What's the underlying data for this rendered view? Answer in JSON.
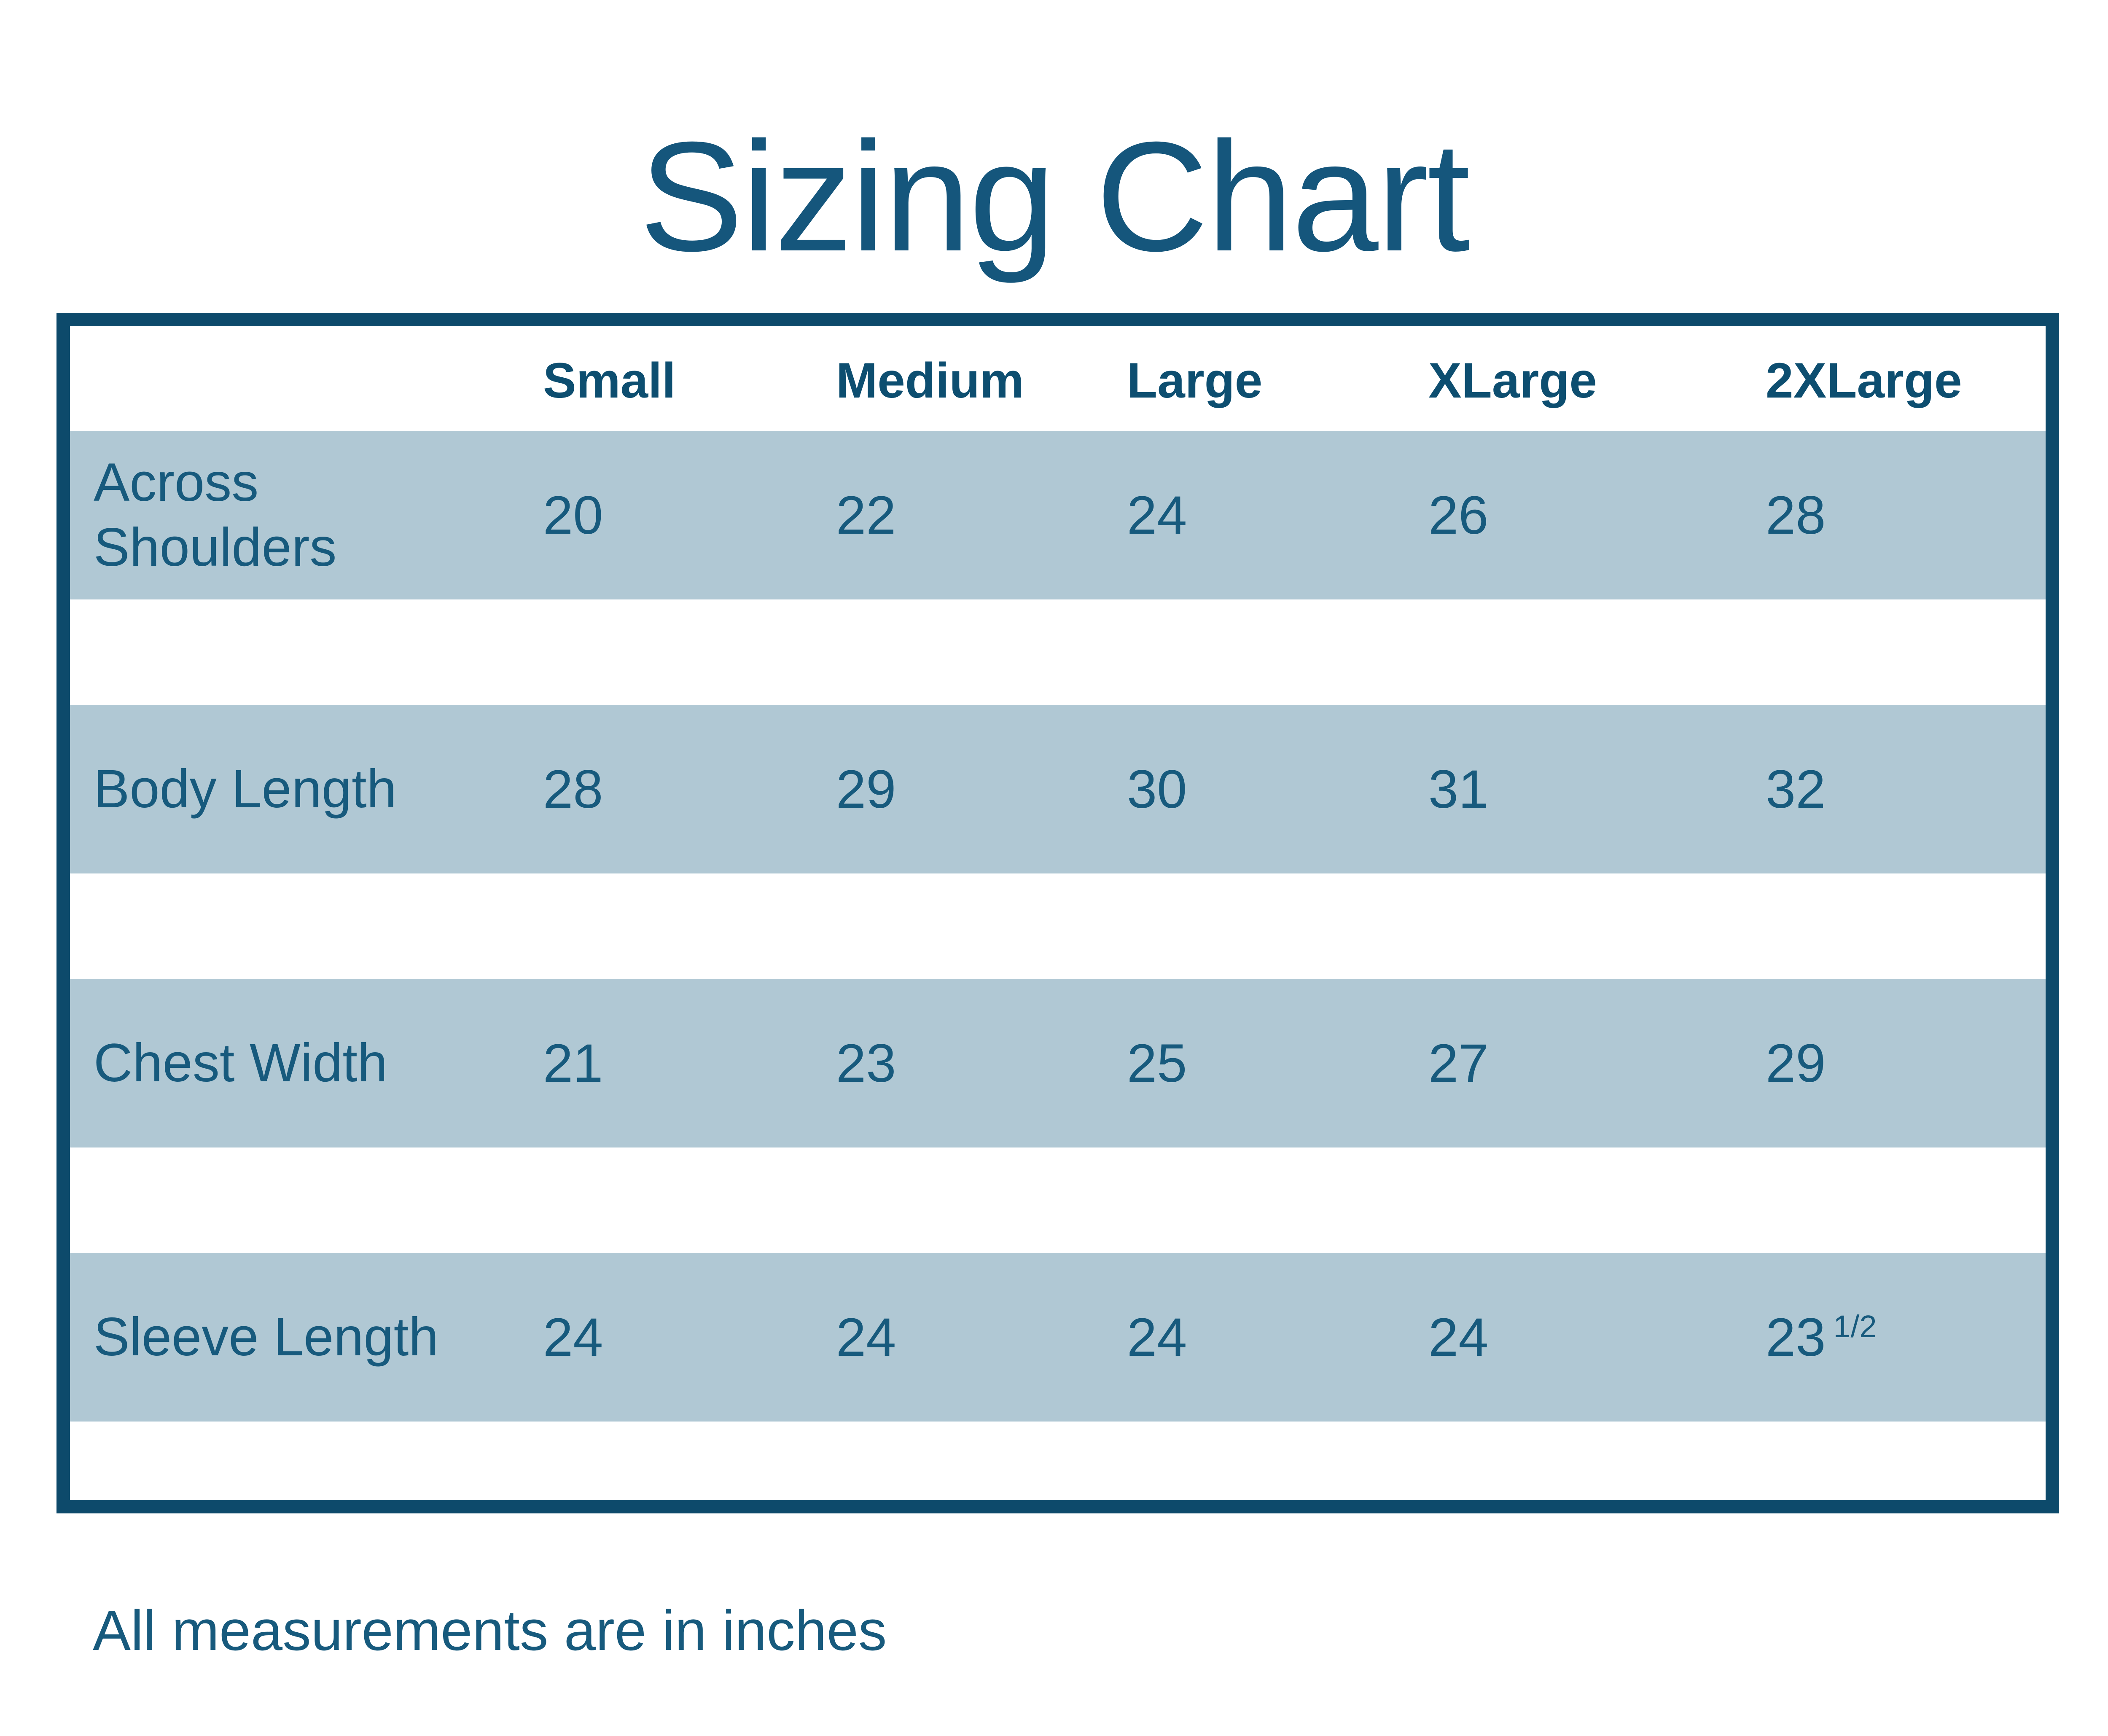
{
  "title": "Sizing Chart",
  "footer": "All measurements are in inches",
  "colors": {
    "border_navy": "#0d4a6b",
    "header_text": "#0d4e70",
    "body_text": "#175a7d",
    "row_blue": "#b0c8d4",
    "background": "#ffffff"
  },
  "table": {
    "columns": [
      "Small",
      "Medium",
      "Large",
      "XLarge",
      "2XLarge"
    ],
    "rows": [
      {
        "label": "Across Shoulders",
        "values": [
          "20",
          "22",
          "24",
          "26",
          "28"
        ]
      },
      {
        "label": "Body Length",
        "values": [
          "28",
          "29",
          "30",
          "31",
          "32"
        ]
      },
      {
        "label": "Chest Width",
        "values": [
          "21",
          "23",
          "25",
          "27",
          "29"
        ]
      },
      {
        "label": "Sleeve Length",
        "values": [
          "24",
          "24",
          "24",
          "24"
        ],
        "last": {
          "main": "23",
          "sup": "1/2"
        }
      }
    ]
  }
}
